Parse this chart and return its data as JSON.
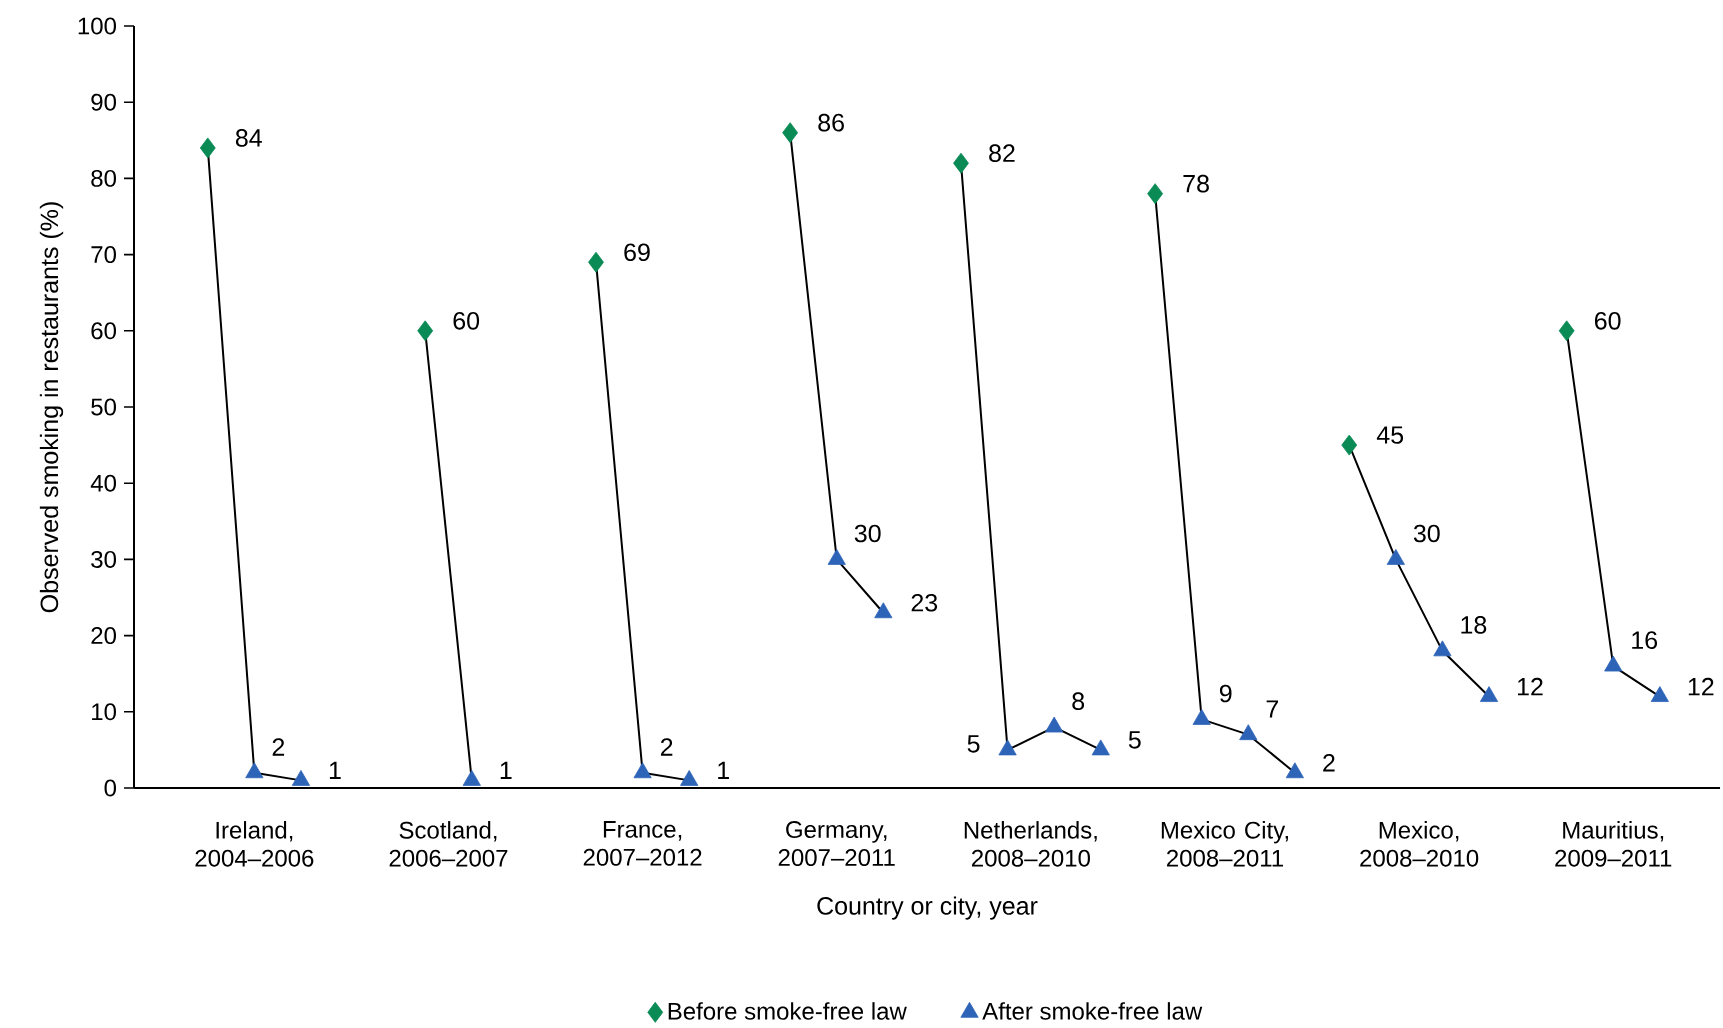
{
  "chart_data": {
    "type": "scatter",
    "xlabel": "Country or city, year",
    "ylabel": "Observed smoking in restaurants (%)",
    "categories": [
      "Ireland, 2004–2006",
      "Scotland, 2006–2007",
      "France, 2007–2012",
      "Germany, 2007–2011",
      "Netherlands, 2008–2010",
      "Mexico City, 2008–2011",
      "Mexico, 2008–2010",
      "Mauritius, 2009–2011"
    ],
    "ylim": [
      0,
      100
    ],
    "yticks": [
      0,
      10,
      20,
      30,
      40,
      50,
      60,
      70,
      80,
      90,
      100
    ],
    "grid": false,
    "legend": "bottom",
    "data_labels": true,
    "series": [
      {
        "name": "Before smoke-free law",
        "color": "#0a8a55",
        "marker": "diamond",
        "values": [
          84,
          60,
          69,
          86,
          82,
          78,
          45,
          60
        ]
      },
      {
        "name": "After smoke-free law",
        "color": "#2e64b8",
        "marker": "triangle",
        "values": [
          2,
          1,
          2,
          30,
          5,
          9,
          30,
          16
        ]
      },
      {
        "color": "#2e64b8",
        "marker": "triangle",
        "values": [
          1,
          null,
          1,
          23,
          8,
          7,
          18,
          12
        ]
      },
      {
        "color": "#2e64b8",
        "marker": "triangle",
        "values": [
          null,
          null,
          null,
          null,
          5,
          2,
          12,
          null
        ]
      }
    ]
  }
}
